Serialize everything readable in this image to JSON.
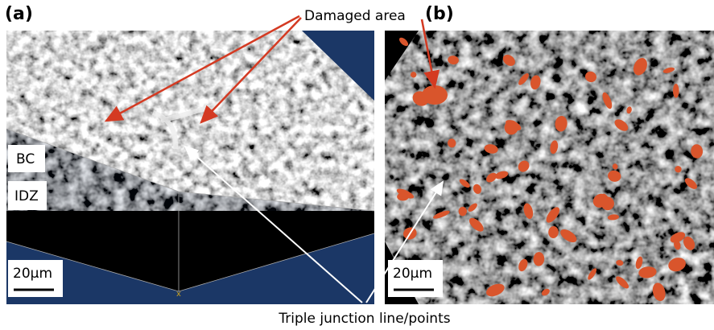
{
  "panels": [
    {
      "label": "(a)",
      "layers": [
        "BC",
        "IDZ"
      ],
      "scale_bar": "20μm"
    },
    {
      "label": "(b)",
      "scale_bar": "20μm"
    }
  ],
  "annotations": {
    "damaged": "Damaged area",
    "triple": "Triple junction line/points"
  }
}
